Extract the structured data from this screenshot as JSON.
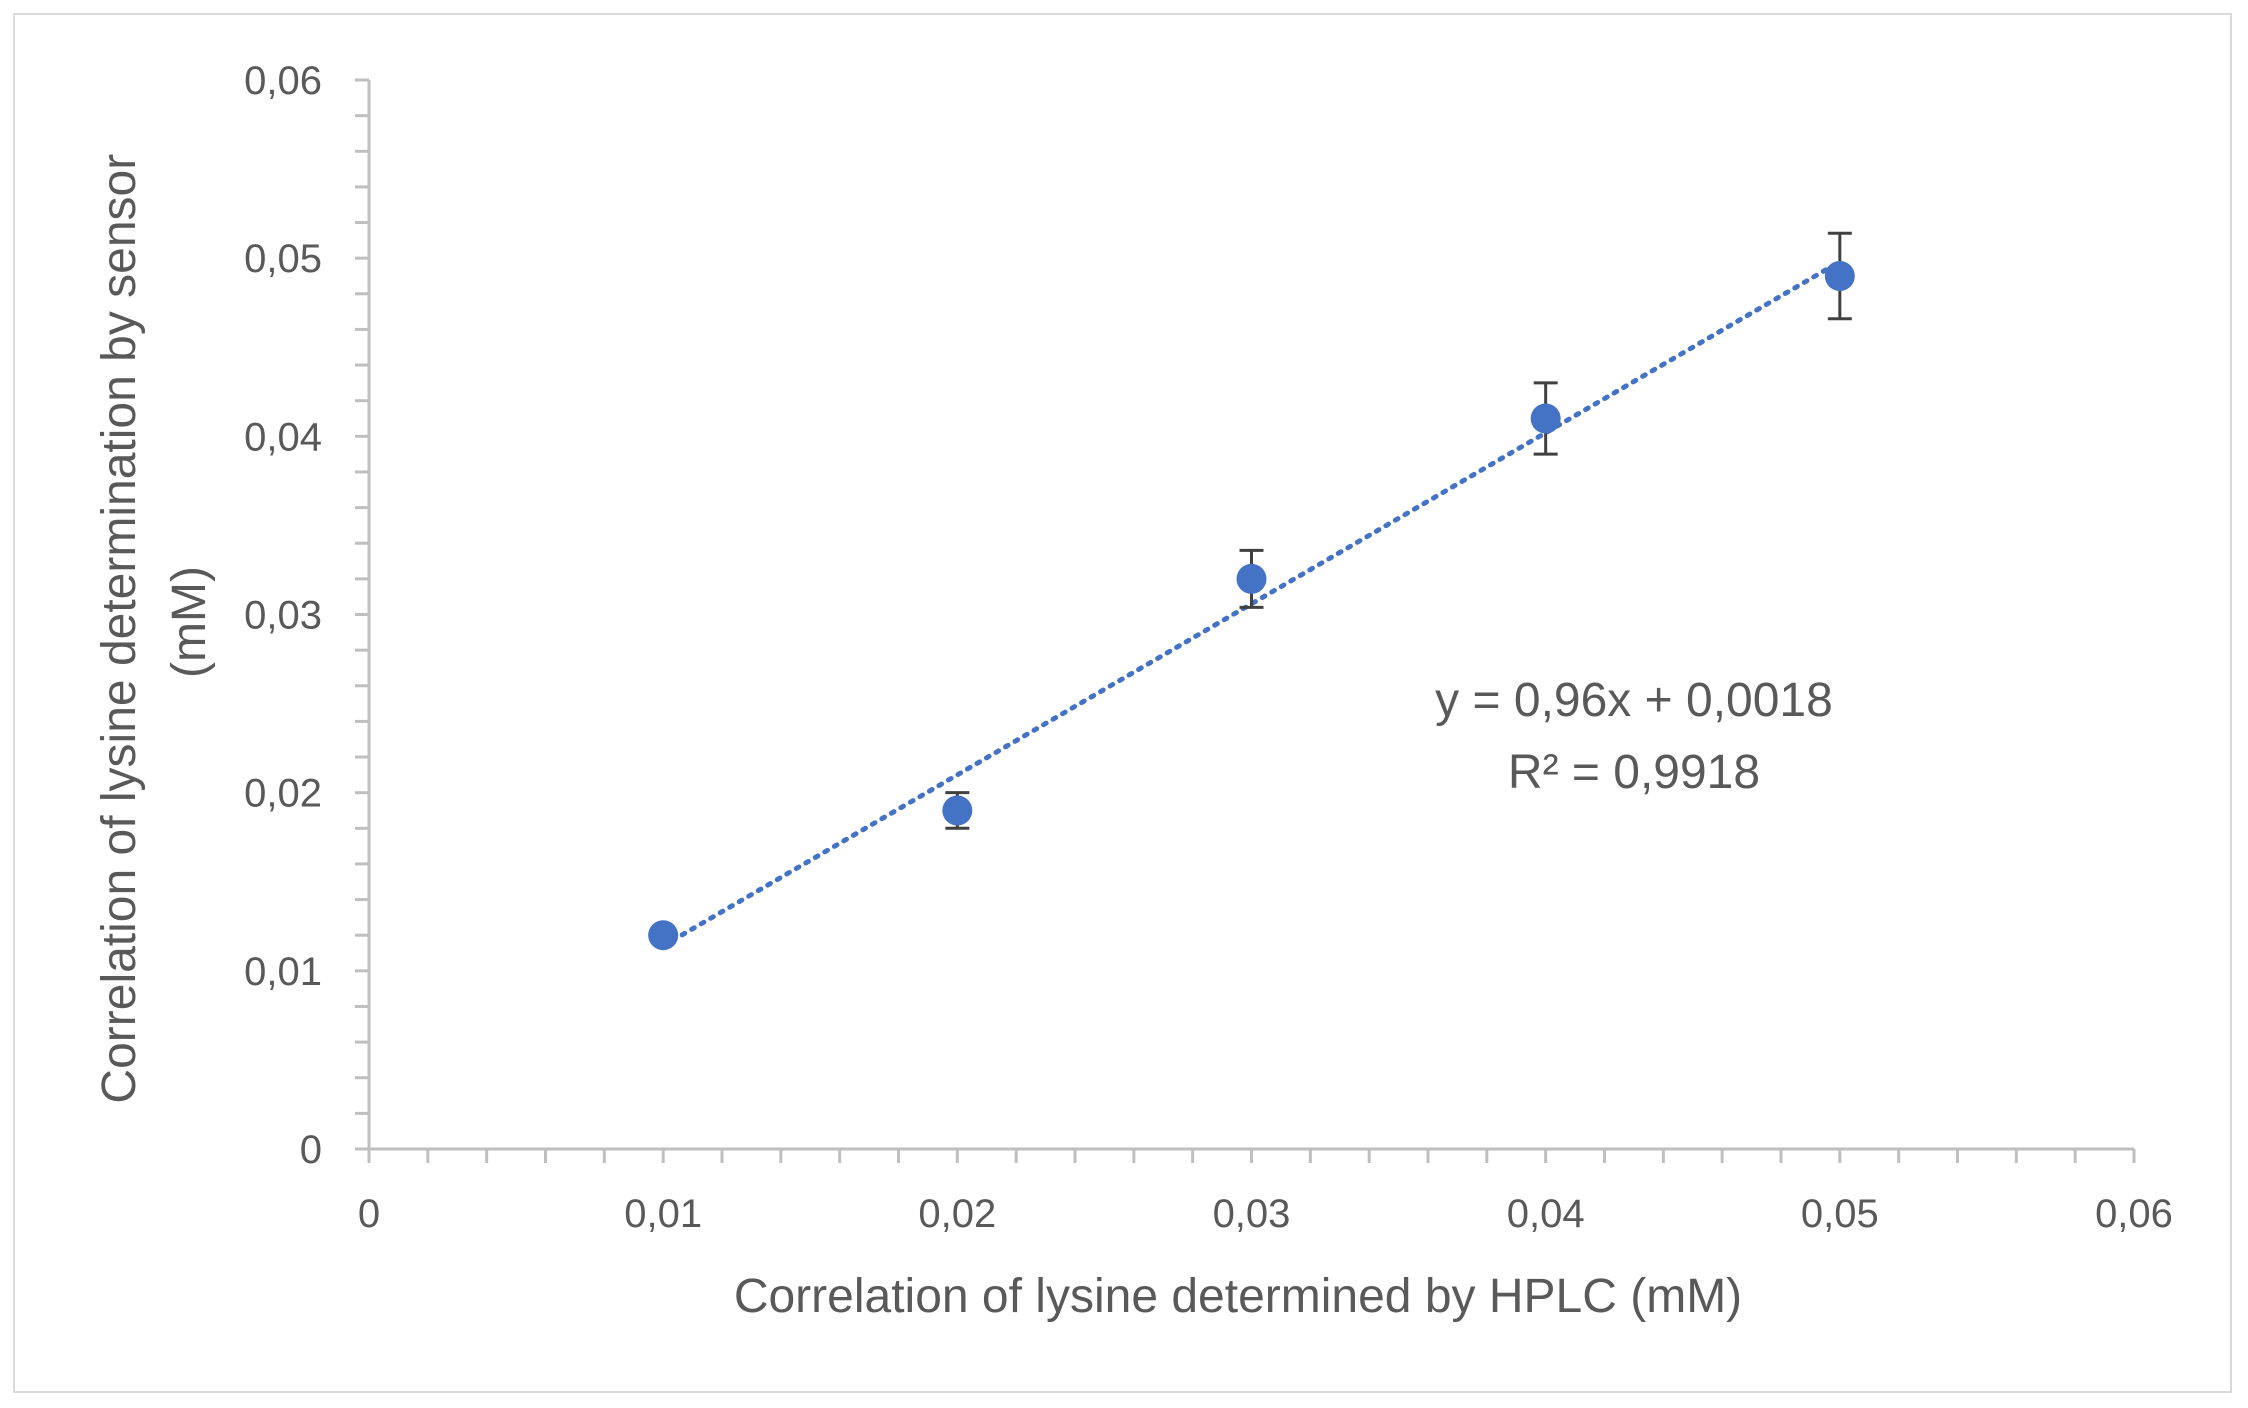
{
  "chart_data": {
    "type": "scatter",
    "title": "",
    "xlabel": "Correlation of lysine determined by HPLC (mM)",
    "ylabel_lines": [
      "Correlation of lysine determination by sensor",
      "(mM)"
    ],
    "xlim": [
      0,
      0.06
    ],
    "ylim": [
      0,
      0.06
    ],
    "x_ticks": [
      0,
      0.01,
      0.02,
      0.03,
      0.04,
      0.05,
      0.06
    ],
    "y_ticks": [
      0,
      0.01,
      0.02,
      0.03,
      0.04,
      0.05,
      0.06
    ],
    "x_tick_labels": [
      "0",
      "0,01",
      "0,02",
      "0,03",
      "0,04",
      "0,05",
      "0,06"
    ],
    "y_tick_labels": [
      "0",
      "0,01",
      "0,02",
      "0,03",
      "0,04",
      "0,05",
      "0,06"
    ],
    "grid": false,
    "legend": "none",
    "series": [
      {
        "x": [
          0.01,
          0.02,
          0.03,
          0.04,
          0.05
        ],
        "y": [
          0.012,
          0.019,
          0.032,
          0.041,
          0.049
        ],
        "error": [
          0.0003,
          0.001,
          0.0016,
          0.002,
          0.0024
        ],
        "color": "#4472c4"
      }
    ],
    "trendline": {
      "type": "linear",
      "slope": 0.96,
      "intercept": 0.0018,
      "x_range": [
        0.01,
        0.05
      ],
      "style": "dotted",
      "color": "#4472c4"
    },
    "annotations": [
      "y = 0,96x + 0,0018",
      "R² = 0,9918"
    ]
  }
}
